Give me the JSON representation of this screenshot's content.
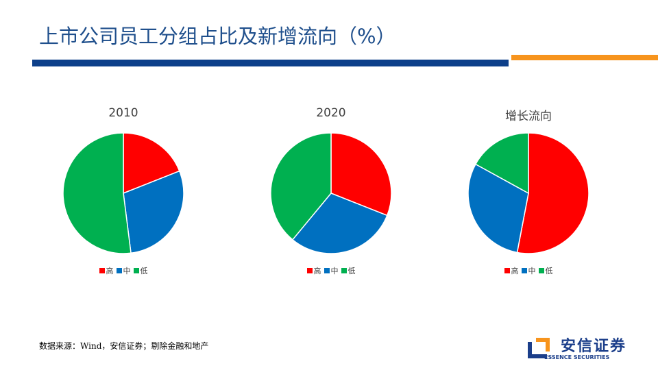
{
  "title": "上市公司员工分组占比及新增流向（%）",
  "colors": {
    "title": "#1f4f8c",
    "header_bar": "#0d3f8a",
    "accent_bar": "#f7941d"
  },
  "chart_data": [
    {
      "type": "pie",
      "title": "2010",
      "categories": [
        "高",
        "中",
        "低"
      ],
      "values": [
        19,
        29,
        52
      ],
      "colors": [
        "#ff0000",
        "#0070c0",
        "#00b050"
      ],
      "legend": "bottom"
    },
    {
      "type": "pie",
      "title": "2020",
      "categories": [
        "高",
        "中",
        "低"
      ],
      "values": [
        31,
        30,
        39
      ],
      "colors": [
        "#ff0000",
        "#0070c0",
        "#00b050"
      ],
      "legend": "bottom"
    },
    {
      "type": "pie",
      "title": "增长流向",
      "categories": [
        "高",
        "中",
        "低"
      ],
      "values": [
        53,
        30,
        17
      ],
      "colors": [
        "#ff0000",
        "#0070c0",
        "#00b050"
      ],
      "legend": "bottom"
    }
  ],
  "footer": {
    "source": "数据来源：Wind，安信证券；剔除金融和地产"
  },
  "logo": {
    "cn": "安信证券",
    "en": "ESSENCE SECURITIES"
  }
}
